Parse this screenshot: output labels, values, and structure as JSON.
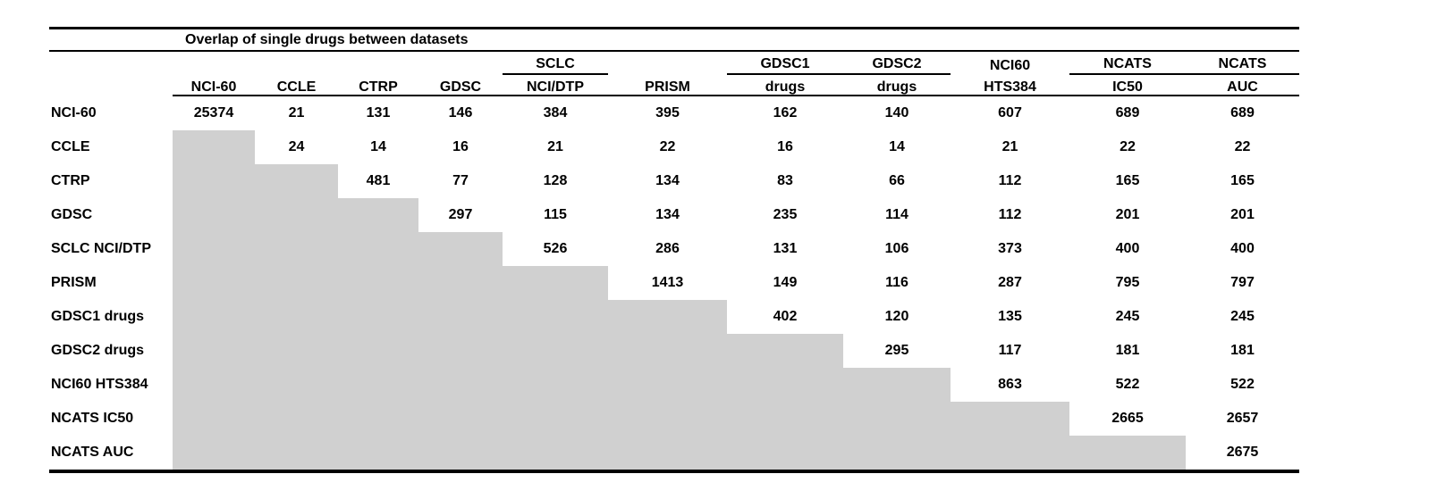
{
  "chart_data": {
    "type": "table",
    "title": "Overlap of single drugs between datasets",
    "columns": [
      {
        "top": "",
        "bottom": "NCI-60",
        "top_underline": false
      },
      {
        "top": "",
        "bottom": "CCLE",
        "top_underline": false
      },
      {
        "top": "",
        "bottom": "CTRP",
        "top_underline": false
      },
      {
        "top": "",
        "bottom": "GDSC",
        "top_underline": false
      },
      {
        "top": "SCLC",
        "bottom": "NCI/DTP",
        "top_underline": true
      },
      {
        "top": "",
        "bottom": "PRISM",
        "top_underline": false
      },
      {
        "top": "GDSC1",
        "bottom": "drugs",
        "top_underline": true
      },
      {
        "top": "GDSC2",
        "bottom": "drugs",
        "top_underline": true
      },
      {
        "top": "NCI60",
        "bottom": "HTS384",
        "top_underline": false
      },
      {
        "top": "NCATS",
        "bottom": "IC50",
        "top_underline": true
      },
      {
        "top": "NCATS",
        "bottom": "AUC",
        "top_underline": true
      }
    ],
    "row_labels": [
      "NCI-60",
      "CCLE",
      "CTRP",
      "GDSC",
      "SCLC NCI/DTP",
      "PRISM",
      "GDSC1 drugs",
      "GDSC2 drugs",
      "NCI60 HTS384",
      "NCATS IC50",
      "NCATS AUC"
    ],
    "matrix": [
      [
        25374,
        21,
        131,
        146,
        384,
        395,
        162,
        140,
        607,
        689,
        689
      ],
      [
        null,
        24,
        14,
        16,
        21,
        22,
        16,
        14,
        21,
        22,
        22
      ],
      [
        null,
        null,
        481,
        77,
        128,
        134,
        83,
        66,
        112,
        165,
        165
      ],
      [
        null,
        null,
        null,
        297,
        115,
        134,
        235,
        114,
        112,
        201,
        201
      ],
      [
        null,
        null,
        null,
        null,
        526,
        286,
        131,
        106,
        373,
        400,
        400
      ],
      [
        null,
        null,
        null,
        null,
        null,
        1413,
        149,
        116,
        287,
        795,
        797
      ],
      [
        null,
        null,
        null,
        null,
        null,
        null,
        402,
        120,
        135,
        245,
        245
      ],
      [
        null,
        null,
        null,
        null,
        null,
        null,
        null,
        295,
        117,
        181,
        181
      ],
      [
        null,
        null,
        null,
        null,
        null,
        null,
        null,
        null,
        863,
        522,
        522
      ],
      [
        null,
        null,
        null,
        null,
        null,
        null,
        null,
        null,
        null,
        2665,
        2657
      ],
      [
        null,
        null,
        null,
        null,
        null,
        null,
        null,
        null,
        null,
        null,
        2675
      ]
    ],
    "lower_triangle": "masked-gray",
    "colors": {
      "mask_gray": "#d0d0d0",
      "line": "#000000",
      "text": "#000000",
      "background": "#ffffff"
    }
  }
}
